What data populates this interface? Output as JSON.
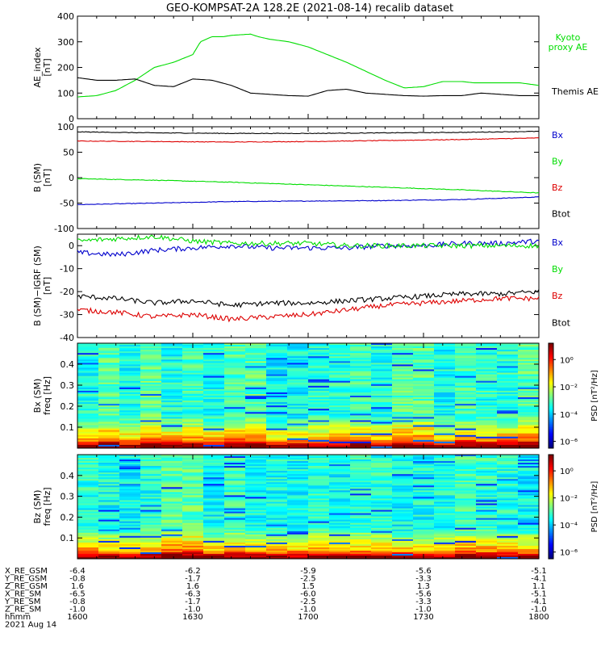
{
  "title": "GEO-KOMPSAT-2A 128.2E (2021-08-14) recalib dataset",
  "chart_data": [
    {
      "type": "line",
      "ylabel": "AE_index\n[nT]",
      "ylim": [
        0,
        400
      ],
      "yticks": [
        0,
        100,
        200,
        300,
        400
      ],
      "xlim": [
        0,
        120
      ],
      "grid": false,
      "legend_position": "right",
      "series": [
        {
          "name": "Kyoto proxy AE",
          "color": "#00dd00",
          "x": [
            0,
            5,
            10,
            15,
            20,
            25,
            30,
            32,
            35,
            38,
            40,
            45,
            47,
            50,
            55,
            60,
            65,
            70,
            75,
            80,
            85,
            90,
            95,
            100,
            103,
            105,
            110,
            115,
            120
          ],
          "y": [
            85,
            90,
            110,
            150,
            200,
            220,
            250,
            300,
            320,
            320,
            325,
            330,
            320,
            310,
            300,
            280,
            250,
            220,
            185,
            150,
            120,
            125,
            145,
            145,
            140,
            140,
            140,
            140,
            130
          ]
        },
        {
          "name": "Themis AE",
          "color": "#000000",
          "x": [
            0,
            5,
            10,
            15,
            20,
            25,
            30,
            35,
            40,
            45,
            50,
            55,
            60,
            65,
            70,
            75,
            80,
            85,
            90,
            95,
            100,
            105,
            110,
            115,
            120
          ],
          "y": [
            160,
            150,
            150,
            155,
            130,
            125,
            155,
            150,
            130,
            100,
            95,
            90,
            88,
            110,
            115,
            100,
            95,
            90,
            88,
            90,
            90,
            100,
            95,
            90,
            90
          ]
        }
      ]
    },
    {
      "type": "line",
      "ylabel": "B (SM)\n[nT]",
      "ylim": [
        -100,
        100
      ],
      "yticks": [
        -100,
        -50,
        0,
        50,
        100
      ],
      "xlim": [
        0,
        120
      ],
      "grid": false,
      "legend_position": "right",
      "series": [
        {
          "name": "Bx",
          "color": "#0000cc",
          "x": [
            0,
            20,
            40,
            60,
            80,
            100,
            120
          ],
          "y": [
            -53,
            -50,
            -47,
            -46,
            -45,
            -43,
            -38
          ]
        },
        {
          "name": "By",
          "color": "#00dd00",
          "x": [
            0,
            20,
            40,
            60,
            80,
            100,
            120
          ],
          "y": [
            -2,
            -5,
            -9,
            -14,
            -19,
            -24,
            -30
          ]
        },
        {
          "name": "Bz",
          "color": "#dd0000",
          "x": [
            0,
            20,
            40,
            60,
            80,
            100,
            120
          ],
          "y": [
            72,
            71,
            70,
            71,
            73,
            75,
            78
          ]
        },
        {
          "name": "Btot",
          "color": "#000000",
          "x": [
            0,
            20,
            40,
            60,
            80,
            100,
            120
          ],
          "y": [
            90,
            88,
            87,
            87,
            88,
            89,
            91
          ]
        }
      ]
    },
    {
      "type": "line",
      "ylabel": "B (SM)−IGRF (SM)\n[nT]",
      "ylim": [
        -40,
        5
      ],
      "yticks": [
        -40,
        -30,
        -20,
        -10,
        0
      ],
      "xlim": [
        0,
        120
      ],
      "grid": false,
      "legend_position": "right",
      "series": [
        {
          "name": "Bx",
          "color": "#0000cc",
          "x": [
            0,
            10,
            20,
            30,
            40,
            50,
            60,
            70,
            80,
            90,
            100,
            110,
            120
          ],
          "y": [
            -3,
            -4,
            -2,
            -1,
            0,
            -1,
            -1,
            -1,
            0,
            0,
            1,
            1,
            2
          ]
        },
        {
          "name": "By",
          "color": "#00dd00",
          "x": [
            0,
            10,
            20,
            30,
            40,
            50,
            60,
            70,
            80,
            90,
            100,
            110,
            120
          ],
          "y": [
            2,
            3,
            4,
            2,
            1,
            1,
            1,
            0,
            0,
            0,
            0,
            0,
            0
          ]
        },
        {
          "name": "Bz",
          "color": "#dd0000",
          "x": [
            0,
            10,
            20,
            30,
            40,
            50,
            60,
            70,
            80,
            90,
            100,
            110,
            120
          ],
          "y": [
            -28,
            -29,
            -31,
            -30,
            -32,
            -31,
            -30,
            -28,
            -26,
            -25,
            -24,
            -23,
            -23
          ]
        },
        {
          "name": "Btot",
          "color": "#000000",
          "x": [
            0,
            10,
            20,
            30,
            40,
            50,
            60,
            70,
            80,
            90,
            100,
            110,
            120
          ],
          "y": [
            -22,
            -23,
            -25,
            -24,
            -26,
            -25,
            -25,
            -24,
            -23,
            -22,
            -21,
            -21,
            -20
          ]
        }
      ]
    },
    {
      "type": "heatmap",
      "ylabel": "Bx (SM)\nfreq [Hz]",
      "ylim": [
        0,
        0.5
      ],
      "yticks": [
        0.1,
        0.2,
        0.3,
        0.4
      ],
      "xlim": [
        0,
        120
      ],
      "colorbar": {
        "label": "PSD [nT²/Hz]",
        "ticks": [
          "10⁰",
          "10⁻²",
          "10⁻⁴",
          "10⁻⁶"
        ],
        "range_log10": [
          -6.5,
          1.2
        ]
      }
    },
    {
      "type": "heatmap",
      "ylabel": "Bz (SM)\nfreq [Hz]",
      "ylim": [
        0,
        0.5
      ],
      "yticks": [
        0.1,
        0.2,
        0.3,
        0.4
      ],
      "xlim": [
        0,
        120
      ],
      "colorbar": {
        "label": "PSD [nT²/Hz]",
        "ticks": [
          "10⁰",
          "10⁻²",
          "10⁻⁴",
          "10⁻⁶"
        ],
        "range_log10": [
          -6.5,
          1.2
        ]
      }
    }
  ],
  "ephemeris": {
    "labels": [
      "X_RE_GSM",
      "Y_RE_GSM",
      "Z_RE_GSM",
      "X_RE_SM",
      "Y_RE_SM",
      "Z_RE_SM",
      "hhmm",
      "2021 Aug 14"
    ],
    "columns": [
      [
        "-6.4",
        "-0.8",
        "1.6",
        "-6.5",
        "-0.8",
        "-1.0",
        "1600"
      ],
      [
        "-6.2",
        "-1.7",
        "1.6",
        "-6.3",
        "-1.7",
        "-1.0",
        "1630"
      ],
      [
        "-5.9",
        "-2.5",
        "1.5",
        "-6.0",
        "-2.5",
        "-1.0",
        "1700"
      ],
      [
        "-5.6",
        "-3.3",
        "1.3",
        "-5.6",
        "-3.3",
        "-1.0",
        "1730"
      ],
      [
        "-5.1",
        "-4.1",
        "1.1",
        "-5.1",
        "-4.1",
        "-1.0",
        "1800"
      ]
    ]
  }
}
